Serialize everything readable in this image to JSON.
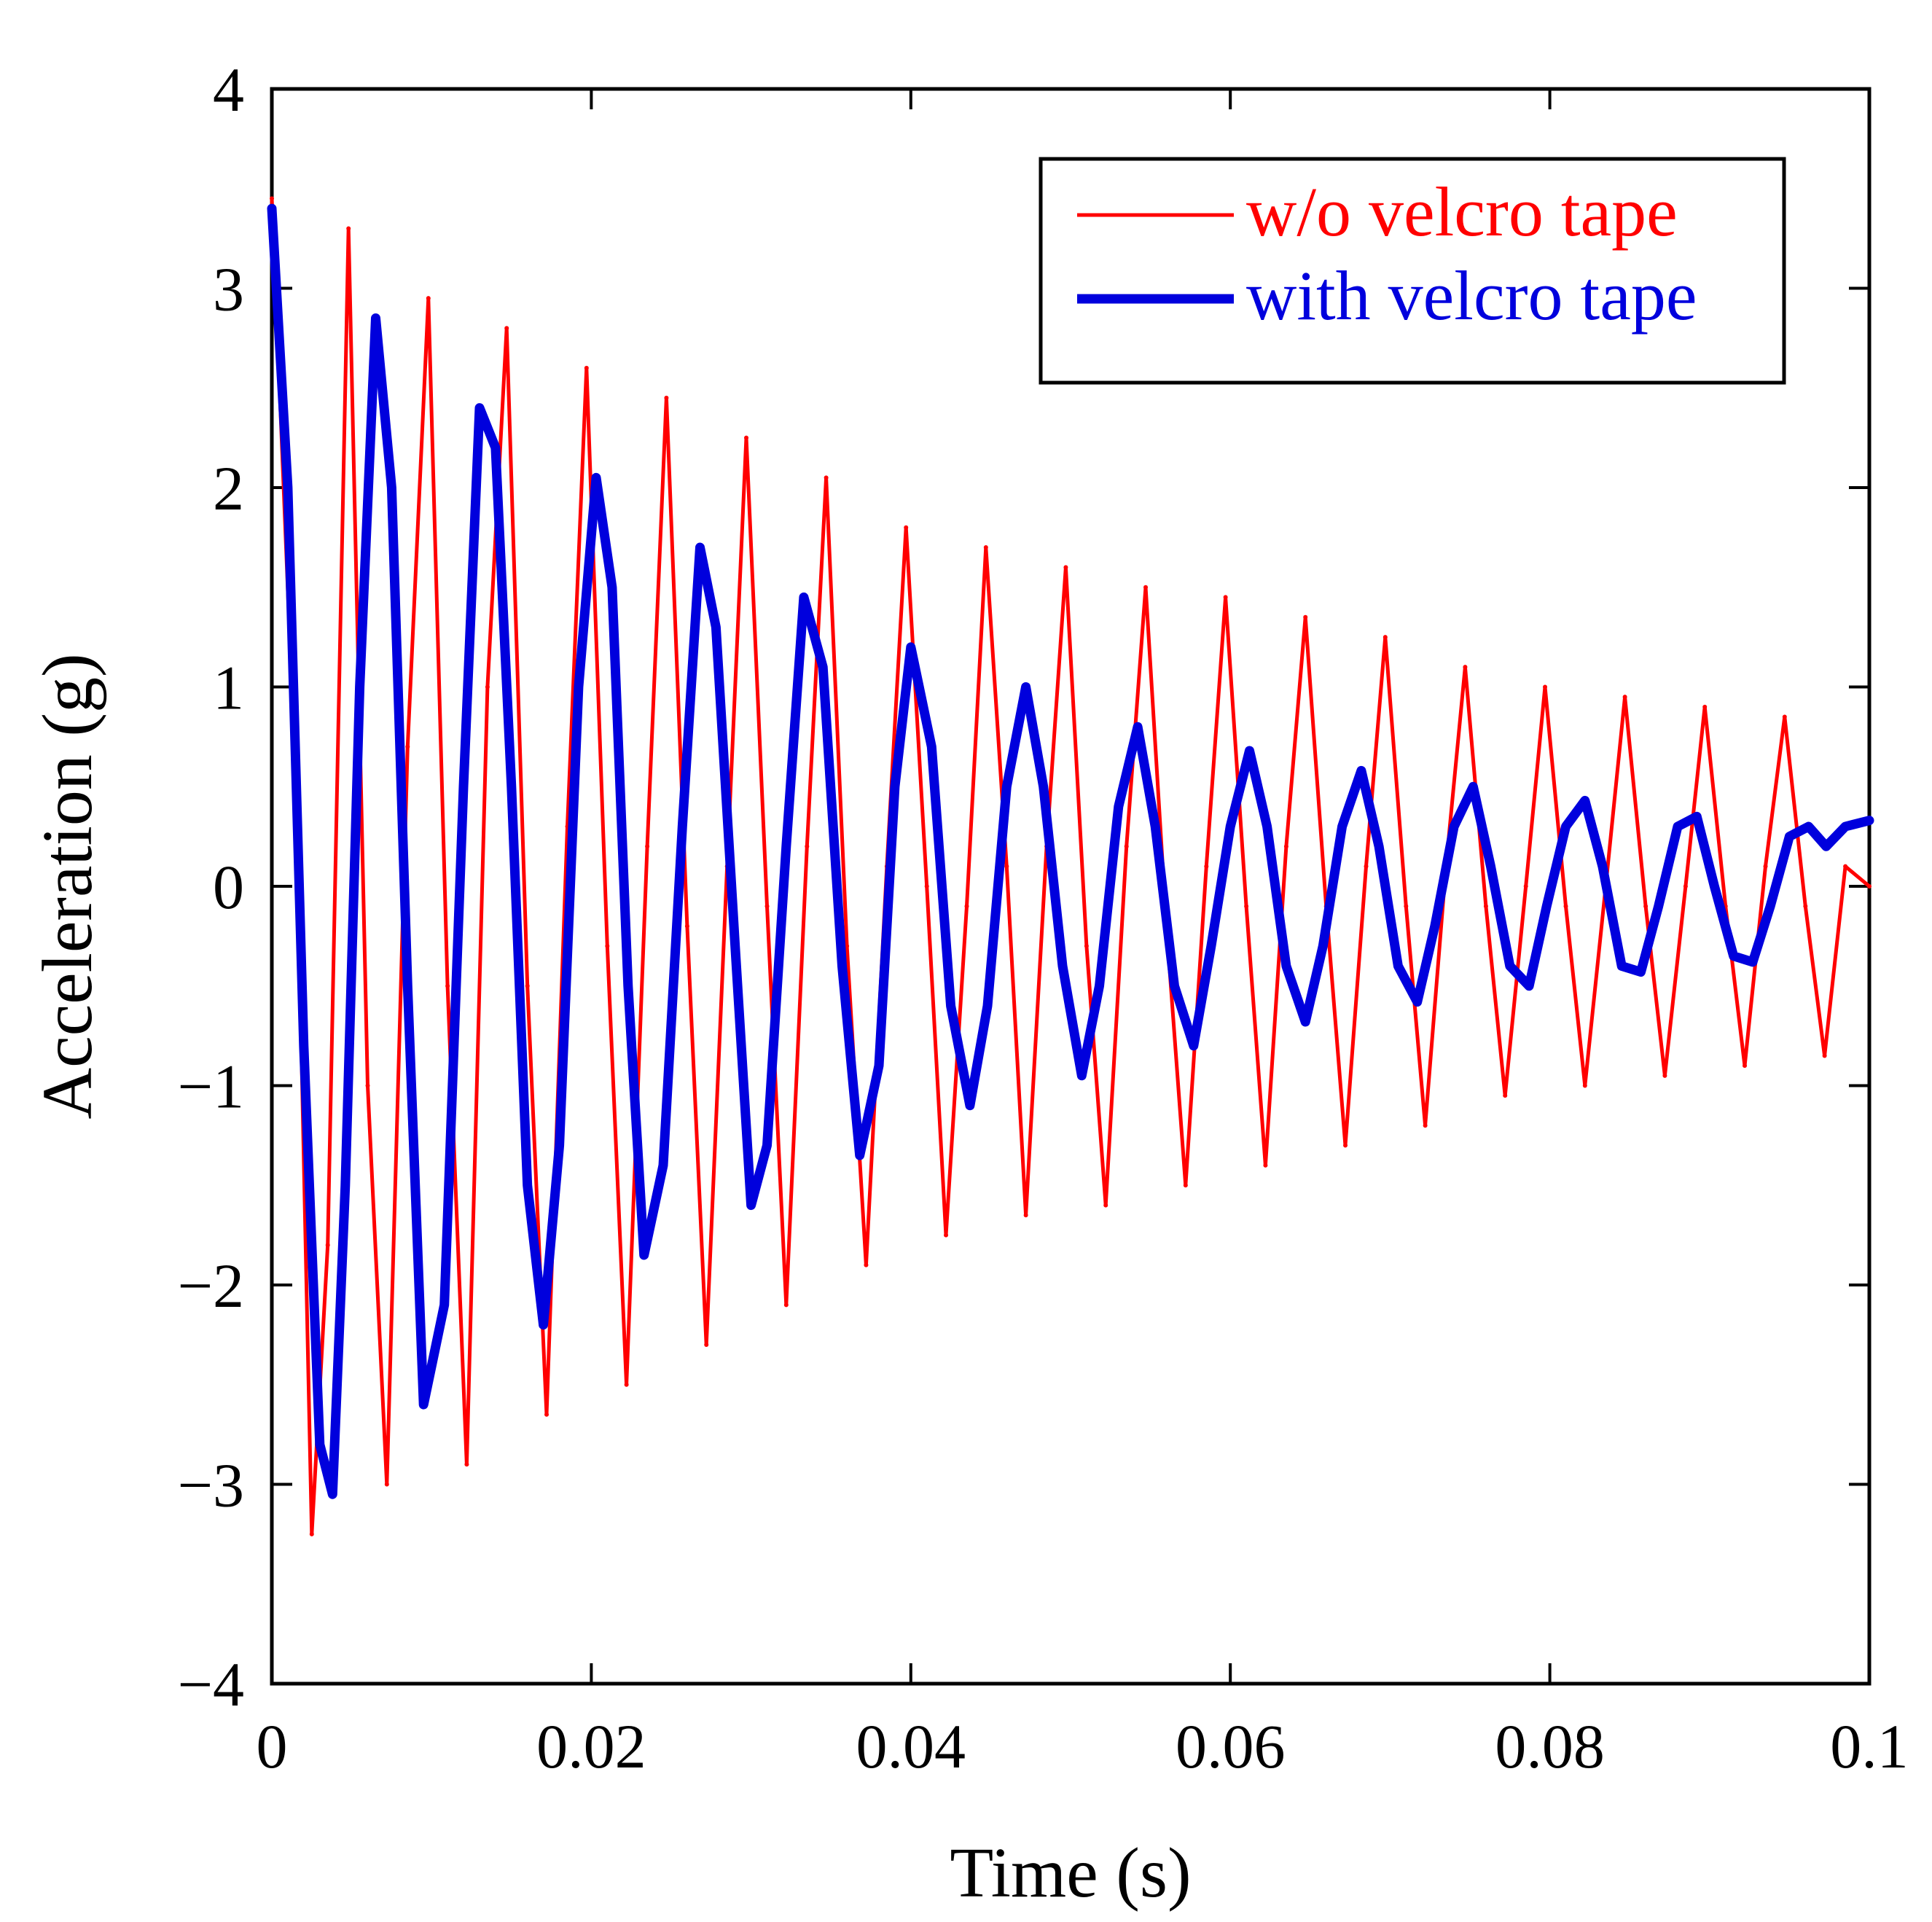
{
  "chart_data": {
    "type": "line",
    "title": "",
    "xlabel": "Time (s)",
    "ylabel": "Acceleration (g)",
    "xlim": [
      0,
      0.1
    ],
    "ylim": [
      -4,
      4
    ],
    "xticks": [
      0,
      0.02,
      0.04,
      0.06,
      0.08,
      0.1
    ],
    "xtick_labels": [
      "0",
      "0.02",
      "0.04",
      "0.06",
      "0.08",
      "0.1"
    ],
    "yticks": [
      -4,
      -3,
      -2,
      -1,
      0,
      1,
      2,
      3,
      4
    ],
    "ytick_labels": [
      "−4",
      "−3",
      "−2",
      "−1",
      "0",
      "1",
      "2",
      "3",
      "4"
    ],
    "grid": false,
    "legend": {
      "position": "top-right"
    },
    "series": [
      {
        "name": "w/o velcro tape",
        "color": "#ff0000",
        "x": [
          0,
          0.0015,
          0.0025,
          0.0035,
          0.0048,
          0.006,
          0.0072,
          0.0085,
          0.0098,
          0.011,
          0.0122,
          0.0135,
          0.0147,
          0.016,
          0.0172,
          0.0185,
          0.0197,
          0.021,
          0.0222,
          0.0235,
          0.0247,
          0.026,
          0.0272,
          0.0285,
          0.0297,
          0.031,
          0.0322,
          0.0335,
          0.0347,
          0.036,
          0.0372,
          0.0385,
          0.0397,
          0.041,
          0.0422,
          0.0435,
          0.0447,
          0.046,
          0.0472,
          0.0485,
          0.0497,
          0.051,
          0.0522,
          0.0535,
          0.0547,
          0.056,
          0.0572,
          0.0585,
          0.0597,
          0.061,
          0.0622,
          0.0635,
          0.0647,
          0.066,
          0.0672,
          0.0685,
          0.0697,
          0.071,
          0.0722,
          0.0735,
          0.0747,
          0.076,
          0.0772,
          0.0785,
          0.0797,
          0.081,
          0.0822,
          0.0835,
          0.0847,
          0.086,
          0.0872,
          0.0885,
          0.0897,
          0.091,
          0.0922,
          0.0935,
          0.0947,
          0.096,
          0.0972,
          0.0985,
          0.1
        ],
        "y": [
          3.45,
          0.5,
          -3.25,
          -1.8,
          3.3,
          -1.0,
          -3.0,
          0.7,
          2.95,
          -0.5,
          -2.9,
          1.0,
          2.8,
          -0.5,
          -2.65,
          0.3,
          2.6,
          -0.3,
          -2.5,
          0.2,
          2.45,
          -0.2,
          -2.3,
          0.1,
          2.25,
          -0.1,
          -2.1,
          0.2,
          2.05,
          -0.3,
          -1.9,
          0.1,
          1.8,
          0.0,
          -1.75,
          -0.1,
          1.7,
          0.1,
          -1.65,
          0.2,
          1.6,
          -0.3,
          -1.6,
          0.2,
          1.5,
          -0.2,
          -1.5,
          0.1,
          1.45,
          -0.1,
          -1.4,
          0.2,
          1.35,
          -0.1,
          -1.3,
          0.1,
          1.25,
          -0.1,
          -1.2,
          0.1,
          1.1,
          -0.1,
          -1.05,
          0.0,
          1.0,
          -0.1,
          -1.0,
          0.0,
          0.95,
          -0.1,
          -0.95,
          0.0,
          0.9,
          -0.1,
          -0.9,
          0.1,
          0.85,
          -0.1,
          -0.85,
          0.1,
          0.0
        ]
      },
      {
        "name": "with velcro tape",
        "color": "#0000dd",
        "x": [
          0,
          0.001,
          0.002,
          0.003,
          0.0038,
          0.0046,
          0.0055,
          0.0065,
          0.0075,
          0.0085,
          0.0095,
          0.0108,
          0.012,
          0.013,
          0.014,
          0.015,
          0.016,
          0.017,
          0.018,
          0.0192,
          0.0203,
          0.0213,
          0.0223,
          0.0233,
          0.0245,
          0.0257,
          0.0268,
          0.0278,
          0.029,
          0.03,
          0.031,
          0.0322,
          0.0333,
          0.0345,
          0.0357,
          0.0368,
          0.038,
          0.039,
          0.04,
          0.0413,
          0.0425,
          0.0437,
          0.0448,
          0.046,
          0.0472,
          0.0483,
          0.0495,
          0.0507,
          0.0518,
          0.053,
          0.0542,
          0.0553,
          0.0565,
          0.0577,
          0.0588,
          0.06,
          0.0612,
          0.0623,
          0.0635,
          0.0647,
          0.0658,
          0.067,
          0.0682,
          0.0693,
          0.0705,
          0.0717,
          0.0728,
          0.074,
          0.0752,
          0.0763,
          0.0775,
          0.0787,
          0.0798,
          0.081,
          0.0822,
          0.0833,
          0.0845,
          0.0857,
          0.0868,
          0.088,
          0.0892,
          0.0903,
          0.0915,
          0.0927,
          0.0938,
          0.095,
          0.0962,
          0.0973,
          0.0985,
          0.1
        ],
        "y": [
          3.4,
          2.0,
          -0.8,
          -2.8,
          -3.05,
          -1.5,
          1.0,
          2.85,
          2.0,
          -0.5,
          -2.6,
          -2.1,
          0.5,
          2.4,
          2.2,
          0.5,
          -1.5,
          -2.2,
          -1.3,
          1.0,
          2.05,
          1.5,
          -0.5,
          -1.85,
          -1.4,
          0.3,
          1.7,
          1.3,
          -0.3,
          -1.6,
          -1.3,
          0.2,
          1.45,
          1.1,
          -0.4,
          -1.35,
          -0.9,
          0.5,
          1.2,
          0.7,
          -0.6,
          -1.1,
          -0.6,
          0.5,
          1.0,
          0.5,
          -0.4,
          -0.95,
          -0.5,
          0.4,
          0.8,
          0.3,
          -0.5,
          -0.8,
          -0.3,
          0.3,
          0.68,
          0.3,
          -0.4,
          -0.68,
          -0.3,
          0.3,
          0.58,
          0.2,
          -0.4,
          -0.58,
          -0.2,
          0.3,
          0.5,
          0.1,
          -0.4,
          -0.5,
          -0.1,
          0.3,
          0.43,
          0.1,
          -0.4,
          -0.43,
          -0.1,
          0.3,
          0.35,
          0.0,
          -0.35,
          -0.38,
          -0.1,
          0.25,
          0.3,
          0.2,
          0.3,
          0.33
        ]
      }
    ]
  }
}
